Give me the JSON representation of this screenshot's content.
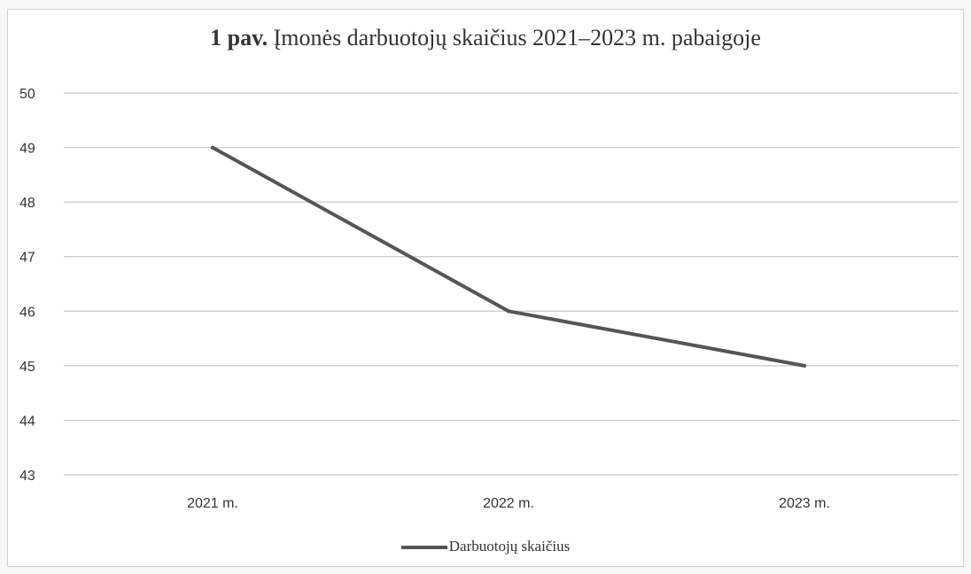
{
  "chart_data": {
    "type": "line",
    "title_bold": "1 pav.",
    "title_rest": "Įmonės darbuotojų skaičius 2021–2023 m. pabaigoje",
    "xlabel": "",
    "ylabel": "",
    "categories": [
      "2021 m.",
      "2022 m.",
      "2023 m."
    ],
    "series": [
      {
        "name": "Darbuotojų skaičius",
        "values": [
          49,
          46,
          45
        ],
        "color": "#555555"
      }
    ],
    "ylim": [
      43,
      50
    ],
    "yticks": [
      50,
      49,
      48,
      47,
      46,
      45,
      44,
      43
    ],
    "grid": true,
    "legend_position": "bottom"
  }
}
